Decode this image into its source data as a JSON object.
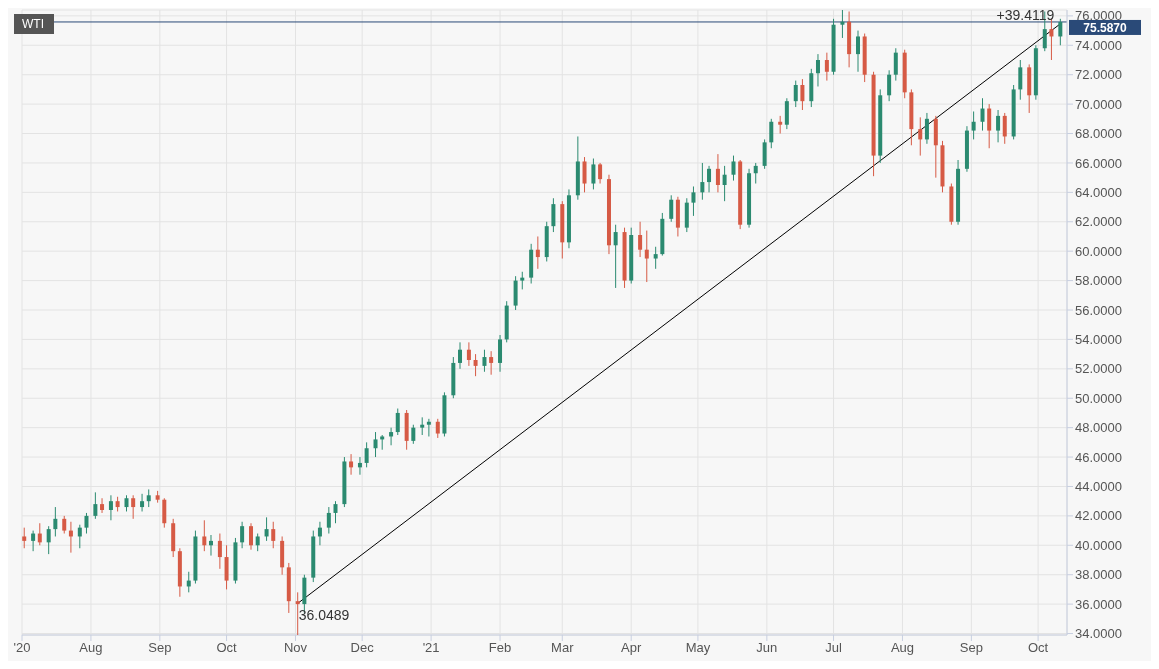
{
  "chart_data": {
    "type": "candlestick",
    "title": "WTI",
    "x": [
      "2020-07-02",
      "2020-07-06",
      "2020-07-09",
      "2020-07-13",
      "2020-07-16",
      "2020-07-20",
      "2020-07-23",
      "2020-07-27",
      "2020-07-30",
      "2020-08-03",
      "2020-08-06",
      "2020-08-10",
      "2020-08-13",
      "2020-08-17",
      "2020-08-20",
      "2020-08-24",
      "2020-08-27",
      "2020-08-31",
      "2020-09-03",
      "2020-09-07",
      "2020-09-10",
      "2020-09-14",
      "2020-09-17",
      "2020-09-21",
      "2020-09-24",
      "2020-09-28",
      "2020-10-01",
      "2020-10-05",
      "2020-10-08",
      "2020-10-12",
      "2020-10-15",
      "2020-10-19",
      "2020-10-22",
      "2020-10-26",
      "2020-10-29",
      "2020-11-02",
      "2020-11-05",
      "2020-11-09",
      "2020-11-12",
      "2020-11-16",
      "2020-11-19",
      "2020-11-23",
      "2020-11-26",
      "2020-11-30",
      "2020-12-03",
      "2020-12-07",
      "2020-12-10",
      "2020-12-14",
      "2020-12-17",
      "2020-12-21",
      "2020-12-24",
      "2020-12-28",
      "2020-12-31",
      "2021-01-04",
      "2021-01-07",
      "2021-01-11",
      "2021-01-14",
      "2021-01-18",
      "2021-01-21",
      "2021-01-25",
      "2021-01-28",
      "2021-02-01",
      "2021-02-04",
      "2021-02-08",
      "2021-02-11",
      "2021-02-15",
      "2021-02-18",
      "2021-02-22",
      "2021-02-25",
      "2021-03-01",
      "2021-03-04",
      "2021-03-08",
      "2021-03-11",
      "2021-03-15",
      "2021-03-18",
      "2021-03-22",
      "2021-03-25",
      "2021-03-29",
      "2021-04-01",
      "2021-04-05",
      "2021-04-08",
      "2021-04-12",
      "2021-04-15",
      "2021-04-19",
      "2021-04-22",
      "2021-04-26",
      "2021-04-29",
      "2021-05-03",
      "2021-05-06",
      "2021-05-10",
      "2021-05-13",
      "2021-05-17",
      "2021-05-20",
      "2021-05-24",
      "2021-05-27",
      "2021-05-31",
      "2021-06-03",
      "2021-06-07",
      "2021-06-10",
      "2021-06-14",
      "2021-06-17",
      "2021-06-21",
      "2021-06-24",
      "2021-06-28",
      "2021-07-01",
      "2021-07-05",
      "2021-07-08",
      "2021-07-12",
      "2021-07-15",
      "2021-07-19",
      "2021-07-22",
      "2021-07-26",
      "2021-07-29",
      "2021-08-02",
      "2021-08-05",
      "2021-08-09",
      "2021-08-12",
      "2021-08-16",
      "2021-08-19",
      "2021-08-23",
      "2021-08-26",
      "2021-08-30",
      "2021-09-02",
      "2021-09-06",
      "2021-09-09",
      "2021-09-13",
      "2021-09-16",
      "2021-09-20",
      "2021-09-23",
      "2021-09-27",
      "2021-09-30",
      "2021-10-04",
      "2021-10-07",
      "2021-10-11"
    ],
    "ohlc": [
      [
        40.6,
        41.2,
        39.8,
        40.3
      ],
      [
        40.3,
        41.0,
        39.6,
        40.8
      ],
      [
        40.8,
        41.5,
        40.0,
        40.2
      ],
      [
        40.2,
        41.3,
        39.4,
        41.1
      ],
      [
        41.1,
        42.6,
        40.6,
        41.8
      ],
      [
        41.8,
        42.0,
        40.8,
        41.0
      ],
      [
        41.0,
        41.6,
        39.5,
        40.6
      ],
      [
        40.6,
        41.4,
        39.8,
        41.2
      ],
      [
        41.2,
        42.2,
        40.8,
        42.0
      ],
      [
        42.0,
        43.6,
        41.8,
        42.8
      ],
      [
        42.8,
        43.2,
        42.2,
        42.4
      ],
      [
        42.4,
        43.4,
        41.7,
        43.0
      ],
      [
        43.0,
        43.3,
        42.3,
        42.6
      ],
      [
        42.6,
        43.4,
        42.3,
        43.2
      ],
      [
        43.2,
        43.4,
        41.8,
        42.6
      ],
      [
        42.6,
        43.5,
        42.3,
        43.0
      ],
      [
        43.0,
        43.8,
        42.6,
        43.4
      ],
      [
        43.4,
        43.7,
        42.9,
        43.1
      ],
      [
        43.1,
        43.2,
        41.2,
        41.5
      ],
      [
        41.5,
        41.8,
        39.2,
        39.6
      ],
      [
        39.6,
        39.8,
        36.5,
        37.2
      ],
      [
        37.2,
        38.2,
        36.8,
        37.6
      ],
      [
        37.6,
        41.0,
        37.4,
        40.6
      ],
      [
        40.6,
        41.7,
        39.6,
        40.0
      ],
      [
        40.0,
        40.7,
        39.3,
        40.3
      ],
      [
        40.3,
        40.8,
        38.4,
        39.2
      ],
      [
        39.2,
        40.0,
        37.0,
        37.6
      ],
      [
        37.6,
        40.5,
        37.4,
        40.2
      ],
      [
        40.2,
        41.6,
        39.8,
        41.3
      ],
      [
        41.3,
        41.5,
        39.7,
        40.0
      ],
      [
        40.0,
        40.8,
        39.6,
        40.6
      ],
      [
        40.6,
        41.9,
        40.3,
        41.1
      ],
      [
        41.1,
        41.6,
        39.8,
        40.3
      ],
      [
        40.3,
        40.6,
        38.0,
        38.5
      ],
      [
        38.5,
        38.8,
        35.4,
        36.2
      ],
      [
        36.2,
        36.8,
        33.7,
        36.0
      ],
      [
        36.0,
        38.0,
        35.4,
        37.8
      ],
      [
        37.8,
        41.0,
        37.5,
        40.6
      ],
      [
        40.6,
        41.6,
        40.0,
        41.2
      ],
      [
        41.2,
        42.6,
        40.8,
        42.2
      ],
      [
        42.2,
        43.0,
        41.5,
        42.8
      ],
      [
        42.8,
        46.0,
        42.6,
        45.7
      ],
      [
        45.7,
        46.2,
        44.8,
        45.3
      ],
      [
        45.3,
        46.0,
        44.8,
        45.6
      ],
      [
        45.6,
        47.0,
        45.3,
        46.6
      ],
      [
        46.6,
        47.7,
        46.0,
        47.2
      ],
      [
        47.2,
        47.5,
        46.5,
        47.4
      ],
      [
        47.4,
        48.0,
        46.8,
        47.7
      ],
      [
        47.7,
        49.3,
        47.5,
        49.0
      ],
      [
        49.0,
        49.2,
        46.5,
        47.1
      ],
      [
        47.1,
        48.2,
        46.9,
        48.0
      ],
      [
        48.0,
        48.7,
        47.5,
        48.2
      ],
      [
        48.2,
        48.6,
        47.4,
        48.4
      ],
      [
        48.4,
        48.6,
        47.3,
        47.6
      ],
      [
        47.6,
        50.4,
        47.4,
        50.2
      ],
      [
        50.2,
        52.8,
        50.0,
        52.4
      ],
      [
        52.4,
        53.8,
        52.0,
        53.3
      ],
      [
        53.3,
        53.8,
        52.2,
        52.6
      ],
      [
        52.6,
        53.0,
        51.5,
        52.2
      ],
      [
        52.2,
        53.3,
        51.8,
        52.8
      ],
      [
        52.8,
        53.2,
        51.6,
        52.4
      ],
      [
        52.4,
        54.3,
        51.8,
        54.0
      ],
      [
        54.0,
        56.6,
        53.8,
        56.3
      ],
      [
        56.3,
        58.3,
        56.0,
        58.0
      ],
      [
        58.0,
        58.6,
        57.4,
        58.2
      ],
      [
        58.2,
        60.5,
        57.8,
        60.1
      ],
      [
        60.1,
        61.0,
        58.8,
        59.6
      ],
      [
        59.6,
        62.0,
        59.3,
        61.7
      ],
      [
        61.7,
        63.6,
        61.3,
        63.2
      ],
      [
        63.2,
        63.4,
        59.5,
        60.6
      ],
      [
        60.6,
        64.2,
        60.2,
        63.8
      ],
      [
        63.8,
        67.8,
        63.5,
        66.1
      ],
      [
        66.1,
        66.4,
        64.0,
        64.6
      ],
      [
        64.6,
        66.3,
        64.2,
        65.9
      ],
      [
        65.9,
        66.0,
        64.6,
        64.9
      ],
      [
        64.9,
        65.2,
        59.8,
        60.4
      ],
      [
        60.4,
        61.8,
        57.5,
        61.3
      ],
      [
        61.3,
        61.6,
        57.5,
        58.0
      ],
      [
        58.0,
        61.6,
        57.8,
        61.1
      ],
      [
        61.1,
        62.0,
        59.6,
        60.1
      ],
      [
        60.1,
        61.4,
        57.9,
        59.5
      ],
      [
        59.5,
        60.3,
        58.8,
        59.8
      ],
      [
        59.8,
        62.6,
        59.7,
        62.2
      ],
      [
        62.2,
        63.8,
        62.0,
        63.5
      ],
      [
        63.5,
        63.7,
        61.0,
        61.6
      ],
      [
        61.6,
        63.6,
        61.3,
        63.3
      ],
      [
        63.3,
        64.4,
        62.4,
        64.0
      ],
      [
        64.0,
        66.0,
        63.5,
        64.7
      ],
      [
        64.7,
        65.8,
        64.0,
        65.6
      ],
      [
        65.6,
        66.6,
        64.0,
        64.5
      ],
      [
        64.5,
        65.8,
        63.4,
        65.2
      ],
      [
        65.2,
        66.5,
        64.8,
        66.1
      ],
      [
        66.1,
        66.2,
        61.5,
        61.8
      ],
      [
        61.8,
        65.6,
        61.6,
        65.3
      ],
      [
        65.3,
        66.0,
        64.6,
        65.8
      ],
      [
        65.8,
        67.6,
        65.6,
        67.4
      ],
      [
        67.4,
        69.0,
        67.0,
        68.8
      ],
      [
        68.8,
        69.2,
        68.0,
        68.6
      ],
      [
        68.6,
        70.4,
        68.3,
        70.2
      ],
      [
        70.2,
        71.6,
        69.8,
        71.3
      ],
      [
        71.3,
        71.7,
        69.6,
        70.2
      ],
      [
        70.2,
        72.4,
        69.8,
        72.1
      ],
      [
        72.1,
        73.4,
        71.2,
        73.0
      ],
      [
        73.0,
        73.5,
        71.6,
        72.2
      ],
      [
        72.2,
        75.8,
        72.0,
        75.4
      ],
      [
        75.4,
        76.4,
        74.5,
        75.6
      ],
      [
        75.6,
        76.3,
        72.5,
        73.4
      ],
      [
        73.4,
        75.0,
        72.2,
        74.6
      ],
      [
        74.6,
        74.8,
        71.5,
        72.0
      ],
      [
        72.0,
        72.2,
        65.1,
        66.5
      ],
      [
        66.5,
        71.0,
        66.0,
        70.6
      ],
      [
        70.6,
        72.3,
        70.2,
        72.0
      ],
      [
        72.0,
        73.8,
        71.6,
        73.5
      ],
      [
        73.5,
        73.7,
        70.4,
        70.8
      ],
      [
        70.8,
        71.0,
        67.2,
        68.3
      ],
      [
        68.3,
        69.1,
        66.5,
        67.6
      ],
      [
        67.6,
        69.4,
        67.3,
        69.0
      ],
      [
        69.0,
        69.2,
        65.0,
        67.2
      ],
      [
        67.2,
        67.5,
        64.0,
        64.4
      ],
      [
        64.4,
        64.6,
        61.8,
        62.0
      ],
      [
        62.0,
        66.2,
        61.8,
        65.6
      ],
      [
        65.6,
        68.5,
        65.4,
        68.2
      ],
      [
        68.2,
        69.5,
        67.6,
        68.8
      ],
      [
        68.8,
        70.4,
        68.2,
        69.7
      ],
      [
        69.7,
        70.0,
        67.0,
        68.2
      ],
      [
        68.2,
        69.6,
        67.4,
        69.2
      ],
      [
        69.2,
        69.4,
        67.3,
        67.8
      ],
      [
        67.8,
        71.3,
        67.6,
        71.0
      ],
      [
        71.0,
        73.0,
        70.3,
        72.5
      ],
      [
        72.5,
        72.7,
        69.4,
        70.6
      ],
      [
        70.6,
        74.0,
        70.3,
        73.8
      ],
      [
        73.8,
        76.3,
        73.6,
        75.1
      ],
      [
        75.1,
        75.8,
        73.0,
        74.6
      ],
      [
        74.6,
        75.8,
        74.0,
        75.587
      ]
    ],
    "colors": [
      "#d65a45",
      "#2b8a70",
      "#d65a45",
      "#2b8a70",
      "#2b8a70",
      "#d65a45",
      "#d65a45",
      "#2b8a70",
      "#2b8a70",
      "#2b8a70",
      "#d65a45",
      "#2b8a70",
      "#d65a45",
      "#2b8a70",
      "#d65a45",
      "#2b8a70",
      "#2b8a70",
      "#d65a45",
      "#d65a45",
      "#d65a45",
      "#d65a45",
      "#2b8a70",
      "#2b8a70",
      "#d65a45",
      "#2b8a70",
      "#d65a45",
      "#d65a45",
      "#2b8a70",
      "#2b8a70",
      "#d65a45",
      "#2b8a70",
      "#2b8a70",
      "#d65a45",
      "#d65a45",
      "#d65a45",
      "#d65a45",
      "#2b8a70",
      "#2b8a70",
      "#2b8a70",
      "#2b8a70",
      "#2b8a70",
      "#2b8a70",
      "#d65a45",
      "#2b8a70",
      "#2b8a70",
      "#2b8a70",
      "#2b8a70",
      "#2b8a70",
      "#2b8a70",
      "#d65a45",
      "#2b8a70",
      "#2b8a70",
      "#2b8a70",
      "#d65a45",
      "#2b8a70",
      "#2b8a70",
      "#2b8a70",
      "#d65a45",
      "#d65a45",
      "#2b8a70",
      "#d65a45",
      "#2b8a70",
      "#2b8a70",
      "#2b8a70",
      "#2b8a70",
      "#2b8a70",
      "#d65a45",
      "#2b8a70",
      "#2b8a70",
      "#d65a45",
      "#2b8a70",
      "#2b8a70",
      "#d65a45",
      "#2b8a70",
      "#d65a45",
      "#d65a45",
      "#2b8a70",
      "#d65a45",
      "#2b8a70",
      "#d65a45",
      "#d65a45",
      "#2b8a70",
      "#2b8a70",
      "#2b8a70",
      "#d65a45",
      "#2b8a70",
      "#2b8a70",
      "#2b8a70",
      "#2b8a70",
      "#d65a45",
      "#2b8a70",
      "#2b8a70",
      "#d65a45",
      "#2b8a70",
      "#2b8a70",
      "#2b8a70",
      "#2b8a70",
      "#d65a45",
      "#2b8a70",
      "#2b8a70",
      "#d65a45",
      "#2b8a70",
      "#2b8a70",
      "#d65a45",
      "#2b8a70",
      "#2b8a70",
      "#d65a45",
      "#2b8a70",
      "#d65a45",
      "#d65a45",
      "#2b8a70",
      "#2b8a70",
      "#2b8a70",
      "#d65a45",
      "#d65a45",
      "#d65a45",
      "#2b8a70",
      "#d65a45",
      "#d65a45",
      "#d65a45",
      "#2b8a70",
      "#2b8a70",
      "#2b8a70",
      "#2b8a70",
      "#d65a45",
      "#2b8a70",
      "#d65a45",
      "#2b8a70",
      "#2b8a70",
      "#d65a45",
      "#2b8a70",
      "#2b8a70",
      "#d65a45",
      "#2b8a70"
    ],
    "series": [
      {
        "type": "line",
        "color": "#000000",
        "x": [
          "2020-11-02",
          "2021-10-11"
        ],
        "values": [
          36.0489,
          75.4608
        ]
      }
    ],
    "xlim": [
      "2020-07-01",
      "2021-10-14"
    ],
    "xticks": [
      {
        "value": "2020-07-01",
        "label": "'20"
      },
      {
        "value": "2020-08-01",
        "label": "Aug"
      },
      {
        "value": "2020-09-01",
        "label": "Sep"
      },
      {
        "value": "2020-10-01",
        "label": "Oct"
      },
      {
        "value": "2020-11-01",
        "label": "Nov"
      },
      {
        "value": "2020-12-01",
        "label": "Dec"
      },
      {
        "value": "2021-01-01",
        "label": "'21"
      },
      {
        "value": "2021-02-01",
        "label": "Feb"
      },
      {
        "value": "2021-03-01",
        "label": "Mar"
      },
      {
        "value": "2021-04-01",
        "label": "Apr"
      },
      {
        "value": "2021-05-01",
        "label": "May"
      },
      {
        "value": "2021-06-01",
        "label": "Jun"
      },
      {
        "value": "2021-07-01",
        "label": "Jul"
      },
      {
        "value": "2021-08-01",
        "label": "Aug"
      },
      {
        "value": "2021-09-01",
        "label": "Sep"
      },
      {
        "value": "2021-10-01",
        "label": "Oct"
      }
    ],
    "ylim": [
      33.9,
      76.4
    ],
    "yticks": [
      {
        "value": 34,
        "label": "34.0000"
      },
      {
        "value": 36,
        "label": "36.0000"
      },
      {
        "value": 38,
        "label": "38.0000"
      },
      {
        "value": 40,
        "label": "40.0000"
      },
      {
        "value": 42,
        "label": "42.0000"
      },
      {
        "value": 44,
        "label": "44.0000"
      },
      {
        "value": 46,
        "label": "46.0000"
      },
      {
        "value": 48,
        "label": "48.0000"
      },
      {
        "value": 50,
        "label": "50.0000"
      },
      {
        "value": 52,
        "label": "52.0000"
      },
      {
        "value": 54,
        "label": "54.0000"
      },
      {
        "value": 56,
        "label": "56.0000"
      },
      {
        "value": 58,
        "label": "58.0000"
      },
      {
        "value": 60,
        "label": "60.0000"
      },
      {
        "value": 62,
        "label": "62.0000"
      },
      {
        "value": 64,
        "label": "64.0000"
      },
      {
        "value": 66,
        "label": "66.0000"
      },
      {
        "value": 68,
        "label": "68.0000"
      },
      {
        "value": 70,
        "label": "70.0000"
      },
      {
        "value": 72,
        "label": "72.0000"
      },
      {
        "value": 74,
        "label": "74.0000"
      },
      {
        "value": 76,
        "label": "76.0000"
      }
    ],
    "grid": true,
    "ref_lines": [
      {
        "axis": "y",
        "value": 75.587,
        "label": "75.5870",
        "color": "#2a4a78"
      }
    ],
    "annotations": [
      {
        "text": "36.0489",
        "x": "2020-11-02",
        "y": 36.0489
      },
      {
        "text": "+39.4119",
        "x": "2021-10-11",
        "y": 75.4608
      }
    ]
  }
}
